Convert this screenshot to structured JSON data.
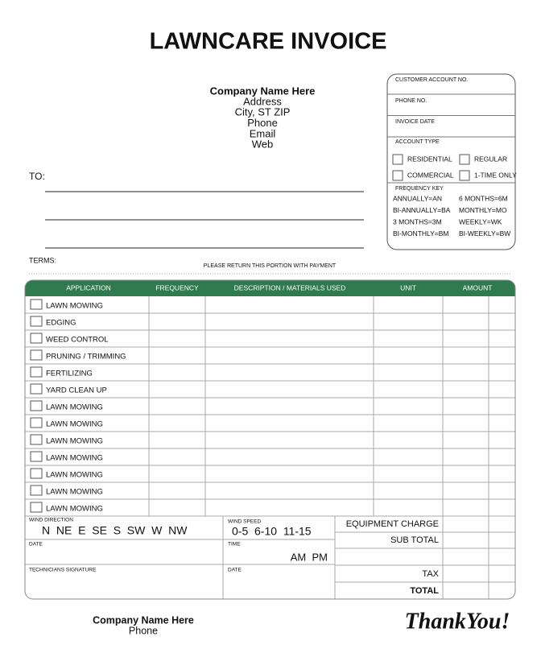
{
  "title": "LAWNCARE INVOICE",
  "company": {
    "name": "Company Name Here",
    "lines": [
      "Address",
      "City, ST ZIP",
      "Phone",
      "Email",
      "Web"
    ]
  },
  "to_label": "TO:",
  "terms_label": "TERMS:",
  "return_note": "PLEASE RETURN THIS PORTION WITH PAYMENT",
  "account_box": {
    "fields": [
      "CUSTOMER ACCOUNT NO.",
      "PHONE NO.",
      "INVOICE DATE"
    ],
    "account_type_label": "ACCOUNT TYPE",
    "account_types": [
      "RESIDENTIAL",
      "REGULAR",
      "COMMERCIAL",
      "1-TIME ONLY"
    ],
    "frequency_key_label": "FREQUENCY KEY",
    "frequency_key": [
      "ANNUALLY=AN",
      "6 MONTHS=6M",
      "BI-ANNUALLY=BA",
      "MONTHLY=MO",
      "3 MONTHS=3M",
      "WEEKLY=WK",
      "BI-MONTHLY=BM",
      "BI-WEEKLY=BW"
    ]
  },
  "table": {
    "headers": [
      "APPLICATION",
      "FREQUENCY",
      "DESCRIPTION / MATERIALS USED",
      "UNIT",
      "AMOUNT"
    ],
    "rows": [
      "LAWN MOWING",
      "EDGING",
      "WEED CONTROL",
      "PRUNING / TRIMMING",
      "FERTILIZING",
      "YARD CLEAN UP",
      "LAWN MOWING",
      "LAWN MOWING",
      "LAWN MOWING",
      "LAWN MOWING",
      "LAWN MOWING",
      "LAWN MOWING",
      "LAWN MOWING"
    ]
  },
  "footer_fields": {
    "wind_direction_label": "WIND DIRECTION",
    "wind_directions": "N  NE  E  SE  S  SW  W  NW",
    "wind_speed_label": "WIND SPEED",
    "wind_speeds": "0-5  6-10  11-15",
    "date_label": "DATE",
    "time_label": "TIME",
    "time_options": "AM  PM",
    "signature_label": "TECHNICIANS SIGNATURE",
    "date2_label": "DATE"
  },
  "totals": [
    "EQUIPMENT CHARGE",
    "SUB TOTAL",
    "TAX",
    "TOTAL"
  ],
  "bottom": {
    "company_name": "Company Name Here",
    "phone": "Phone",
    "thank_you": "ThankYou!"
  }
}
